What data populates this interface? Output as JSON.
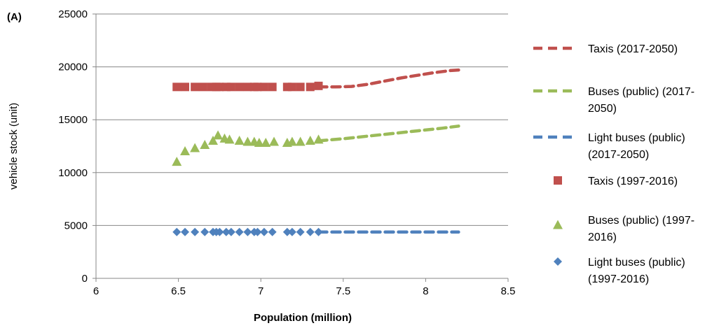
{
  "chart_data": {
    "type": "scatter",
    "panel_label": "(A)",
    "xlabel": "Population (million)",
    "ylabel": "vehicle stock (unit)",
    "xlim": [
      6,
      8.5
    ],
    "ylim": [
      0,
      25000
    ],
    "xticks": [
      6,
      6.5,
      7,
      7.5,
      8,
      8.5
    ],
    "yticks": [
      0,
      5000,
      10000,
      15000,
      20000,
      25000
    ],
    "grid": "horizontal",
    "legend_position": "right",
    "series": [
      {
        "name": "Taxis (2017-2050)",
        "style": "dashed-line",
        "color": "#C0504D",
        "x": [
          7.35,
          7.45,
          7.55,
          7.65,
          7.75,
          7.85,
          7.95,
          8.05,
          8.15,
          8.2
        ],
        "y": [
          18100,
          18100,
          18150,
          18350,
          18650,
          18950,
          19200,
          19450,
          19650,
          19700
        ]
      },
      {
        "name": "Buses (public) (2017-2050)",
        "style": "dashed-line",
        "color": "#9BBB59",
        "x": [
          7.35,
          7.5,
          7.65,
          7.8,
          7.95,
          8.1,
          8.2
        ],
        "y": [
          13000,
          13200,
          13450,
          13700,
          13950,
          14200,
          14400
        ]
      },
      {
        "name": "Light buses (public) (2017-2050)",
        "style": "dashed-line",
        "color": "#4F81BD",
        "x": [
          7.35,
          7.6,
          7.85,
          8.2
        ],
        "y": [
          4380,
          4380,
          4380,
          4380
        ]
      },
      {
        "name": "Taxis (1997-2016)",
        "style": "square-marker",
        "color": "#C0504D",
        "x": [
          6.49,
          6.54,
          6.6,
          6.65,
          6.7,
          6.73,
          6.75,
          6.79,
          6.82,
          6.87,
          6.92,
          6.96,
          6.98,
          7.02,
          7.07,
          7.16,
          7.19,
          7.24,
          7.3,
          7.35
        ],
        "y": [
          18100,
          18100,
          18100,
          18100,
          18100,
          18100,
          18100,
          18100,
          18100,
          18100,
          18100,
          18100,
          18100,
          18100,
          18100,
          18100,
          18100,
          18100,
          18100,
          18200
        ]
      },
      {
        "name": "Buses (public) (1997-2016)",
        "style": "triangle-marker",
        "color": "#9BBB59",
        "x": [
          6.49,
          6.54,
          6.6,
          6.66,
          6.71,
          6.74,
          6.78,
          6.81,
          6.87,
          6.92,
          6.96,
          6.99,
          7.03,
          7.08,
          7.16,
          7.19,
          7.24,
          7.3,
          7.35
        ],
        "y": [
          11000,
          12000,
          12300,
          12600,
          13000,
          13500,
          13200,
          13100,
          13000,
          12900,
          12900,
          12800,
          12800,
          12900,
          12800,
          12900,
          12900,
          13000,
          13100
        ]
      },
      {
        "name": "Light buses (public) (1997-2016)",
        "style": "diamond-marker",
        "color": "#4F81BD",
        "x": [
          6.49,
          6.54,
          6.6,
          6.66,
          6.71,
          6.73,
          6.75,
          6.79,
          6.82,
          6.87,
          6.92,
          6.96,
          6.98,
          7.02,
          7.07,
          7.16,
          7.19,
          7.24,
          7.3,
          7.35
        ],
        "y": [
          4380,
          4380,
          4380,
          4380,
          4380,
          4380,
          4380,
          4380,
          4380,
          4380,
          4380,
          4380,
          4380,
          4380,
          4380,
          4380,
          4380,
          4380,
          4380,
          4380
        ]
      }
    ]
  }
}
